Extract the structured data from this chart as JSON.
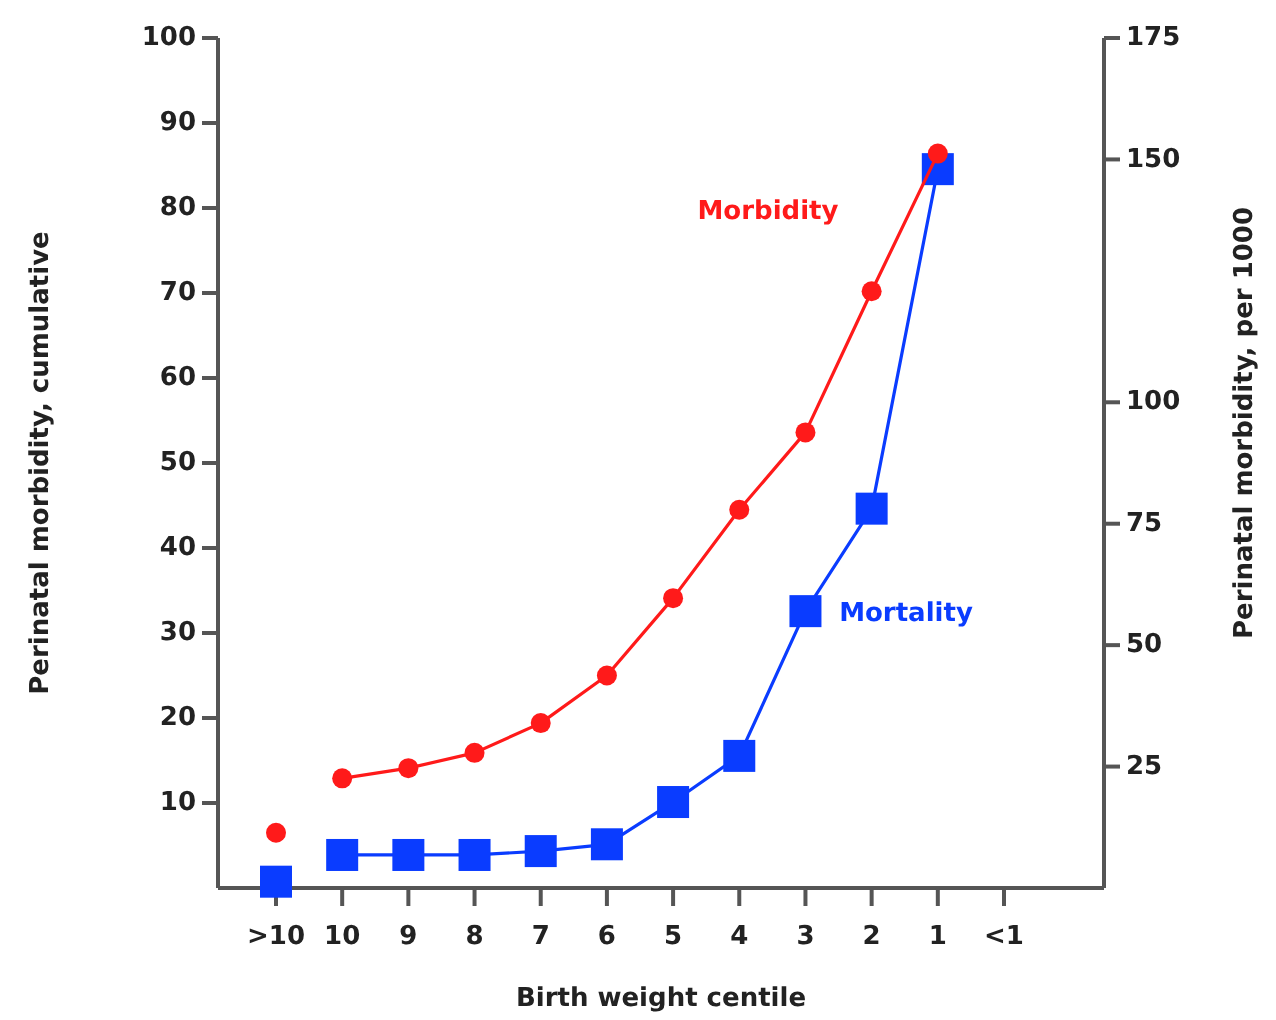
{
  "chart_data": {
    "type": "line",
    "xlabel": "Birth weight centile",
    "ylabel": "Perinatal morbidity, cumulative",
    "y2label": "Perinatal morbidity, per 1000",
    "categories": [
      ">10",
      "10",
      "9",
      "8",
      "7",
      "6",
      "5",
      "4",
      "3",
      "2",
      "1",
      "<1"
    ],
    "ylim": [
      0,
      100
    ],
    "yticks": [
      10,
      20,
      30,
      40,
      50,
      60,
      70,
      80,
      90,
      100
    ],
    "y2lim": [
      0,
      175
    ],
    "y2ticks": [
      25,
      50,
      75,
      100,
      150,
      175
    ],
    "line_style": "solid",
    "series": [
      {
        "name": "Morbidity",
        "type": "line",
        "color": "#ff1a1a",
        "marker": "circle",
        "values": [
          null,
          12.9,
          14.1,
          15.9,
          19.4,
          25.0,
          34.1,
          44.5,
          53.6,
          70.2,
          86.4,
          null
        ]
      },
      {
        "type": "scatter",
        "color": "#ff1a1a",
        "marker": "circle",
        "values": [
          6.5,
          null,
          null,
          null,
          null,
          null,
          null,
          null,
          null,
          null,
          null,
          null
        ]
      },
      {
        "name": "Mortality",
        "type": "line",
        "axis": "y2",
        "color": "#0a3cff",
        "marker": "square",
        "values": [
          null,
          6.8,
          6.8,
          6.8,
          7.6,
          9.0,
          17.7,
          27.2,
          57,
          78.1,
          148,
          null
        ]
      },
      {
        "type": "scatter",
        "axis": "y2",
        "color": "#0a3cff",
        "marker": "square",
        "values": [
          1.3,
          null,
          null,
          null,
          null,
          null,
          null,
          null,
          null,
          null,
          null,
          null
        ]
      }
    ]
  }
}
